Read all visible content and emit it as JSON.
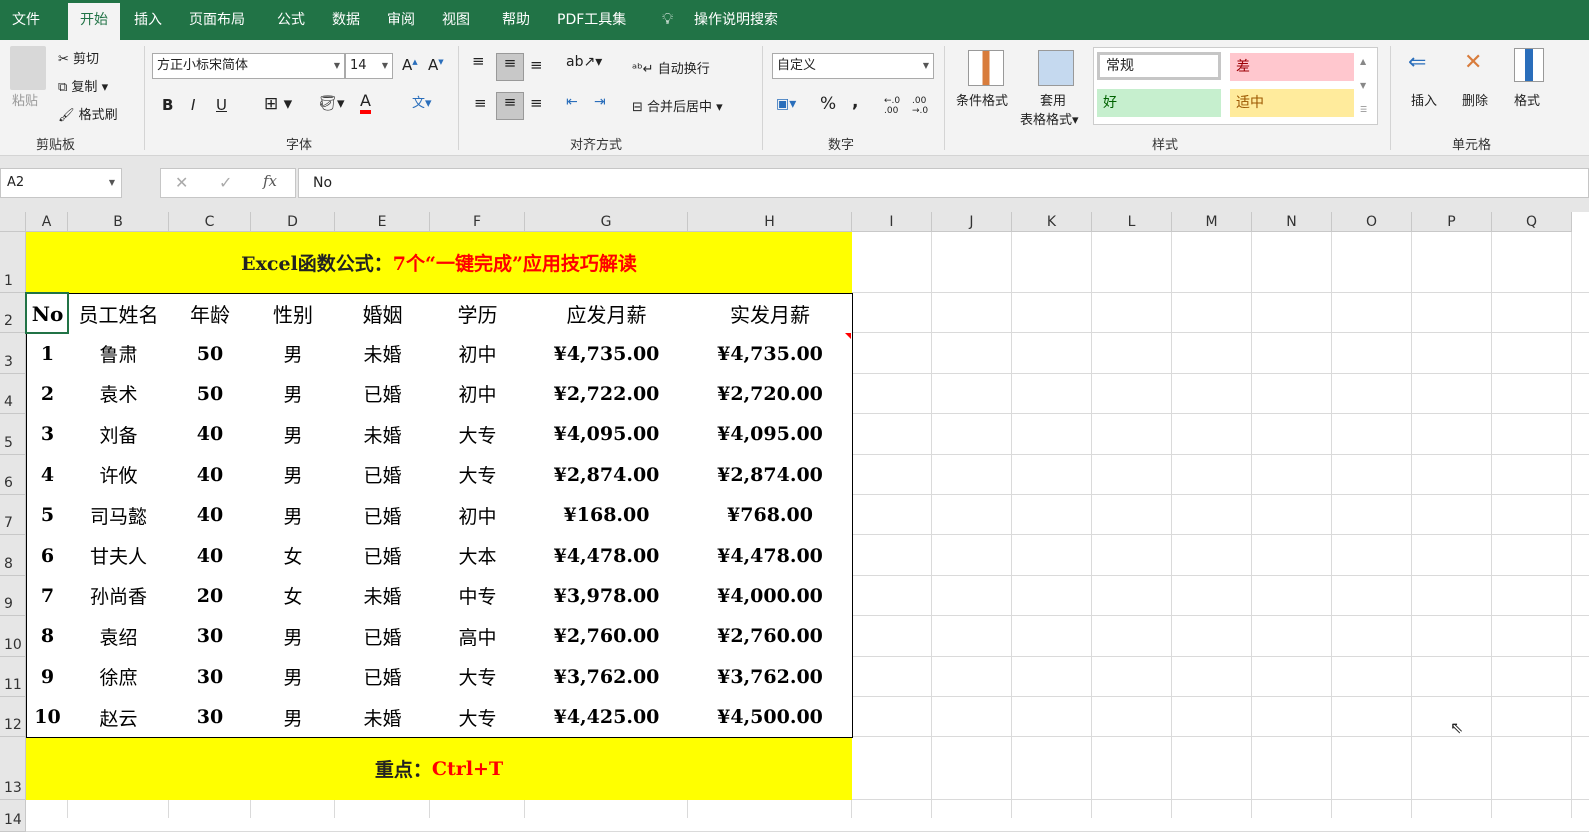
{
  "ribbon_tabs": [
    "文件",
    "开始",
    "插入",
    "页面布局",
    "公式",
    "数据",
    "审阅",
    "视图",
    "帮助",
    "PDF工具集"
  ],
  "active_tab": "开始",
  "tell_me": "操作说明搜索",
  "clipboard": {
    "paste": "粘贴",
    "cut": "剪切",
    "copy": "复制",
    "format_painter": "格式刷",
    "label": "剪贴板"
  },
  "font": {
    "name": "方正小标宋简体",
    "size": "14",
    "bold": "B",
    "italic": "I",
    "underline": "U",
    "label": "字体",
    "font_color": "#ff0000"
  },
  "alignment": {
    "wrap": "自动换行",
    "merge": "合并后居中",
    "label": "对齐方式"
  },
  "number": {
    "format": "自定义",
    "percent": "%",
    "comma": ",",
    "label": "数字"
  },
  "styles": {
    "conditional": "条件格式",
    "table_fmt_1": "套用",
    "table_fmt_2": "表格格式",
    "normal": "常规",
    "bad": "差",
    "good": "好",
    "neutral": "适中",
    "label": "样式"
  },
  "cells_group": {
    "insert": "插入",
    "delete": "删除",
    "format": "格式",
    "label": "单元格"
  },
  "name_box": "A2",
  "formula": "No",
  "columns": [
    "A",
    "B",
    "C",
    "D",
    "E",
    "F",
    "G",
    "H",
    "I",
    "J",
    "K",
    "L",
    "M",
    "N",
    "O",
    "P",
    "Q"
  ],
  "rows": [
    "1",
    "2",
    "3",
    "4",
    "5",
    "6",
    "7",
    "8",
    "9",
    "10",
    "11",
    "12",
    "13",
    "14"
  ],
  "title": {
    "black": "Excel函数公式：",
    "red": "7个“一键完成”应用技巧解读"
  },
  "table": {
    "headers": [
      "No",
      "员工姓名",
      "年龄",
      "性别",
      "婚姻",
      "学历",
      "应发月薪",
      "实发月薪"
    ],
    "rows": [
      [
        "1",
        "鲁肃",
        "50",
        "男",
        "未婚",
        "初中",
        "¥4,735.00",
        "¥4,735.00"
      ],
      [
        "2",
        "袁术",
        "50",
        "男",
        "已婚",
        "初中",
        "¥2,722.00",
        "¥2,720.00"
      ],
      [
        "3",
        "刘备",
        "40",
        "男",
        "未婚",
        "大专",
        "¥4,095.00",
        "¥4,095.00"
      ],
      [
        "4",
        "许攸",
        "40",
        "男",
        "已婚",
        "大专",
        "¥2,874.00",
        "¥2,874.00"
      ],
      [
        "5",
        "司马懿",
        "40",
        "男",
        "已婚",
        "初中",
        "¥168.00",
        "¥768.00"
      ],
      [
        "6",
        "甘夫人",
        "40",
        "女",
        "已婚",
        "大本",
        "¥4,478.00",
        "¥4,478.00"
      ],
      [
        "7",
        "孙尚香",
        "20",
        "女",
        "未婚",
        "中专",
        "¥3,978.00",
        "¥4,000.00"
      ],
      [
        "8",
        "袁绍",
        "30",
        "男",
        "已婚",
        "高中",
        "¥2,760.00",
        "¥2,760.00"
      ],
      [
        "9",
        "徐庶",
        "30",
        "男",
        "已婚",
        "大专",
        "¥3,762.00",
        "¥3,762.00"
      ],
      [
        "10",
        "赵云",
        "30",
        "男",
        "未婚",
        "大专",
        "¥4,425.00",
        "¥4,500.00"
      ]
    ]
  },
  "footer": {
    "black": "重点：",
    "red": "Ctrl+T"
  }
}
